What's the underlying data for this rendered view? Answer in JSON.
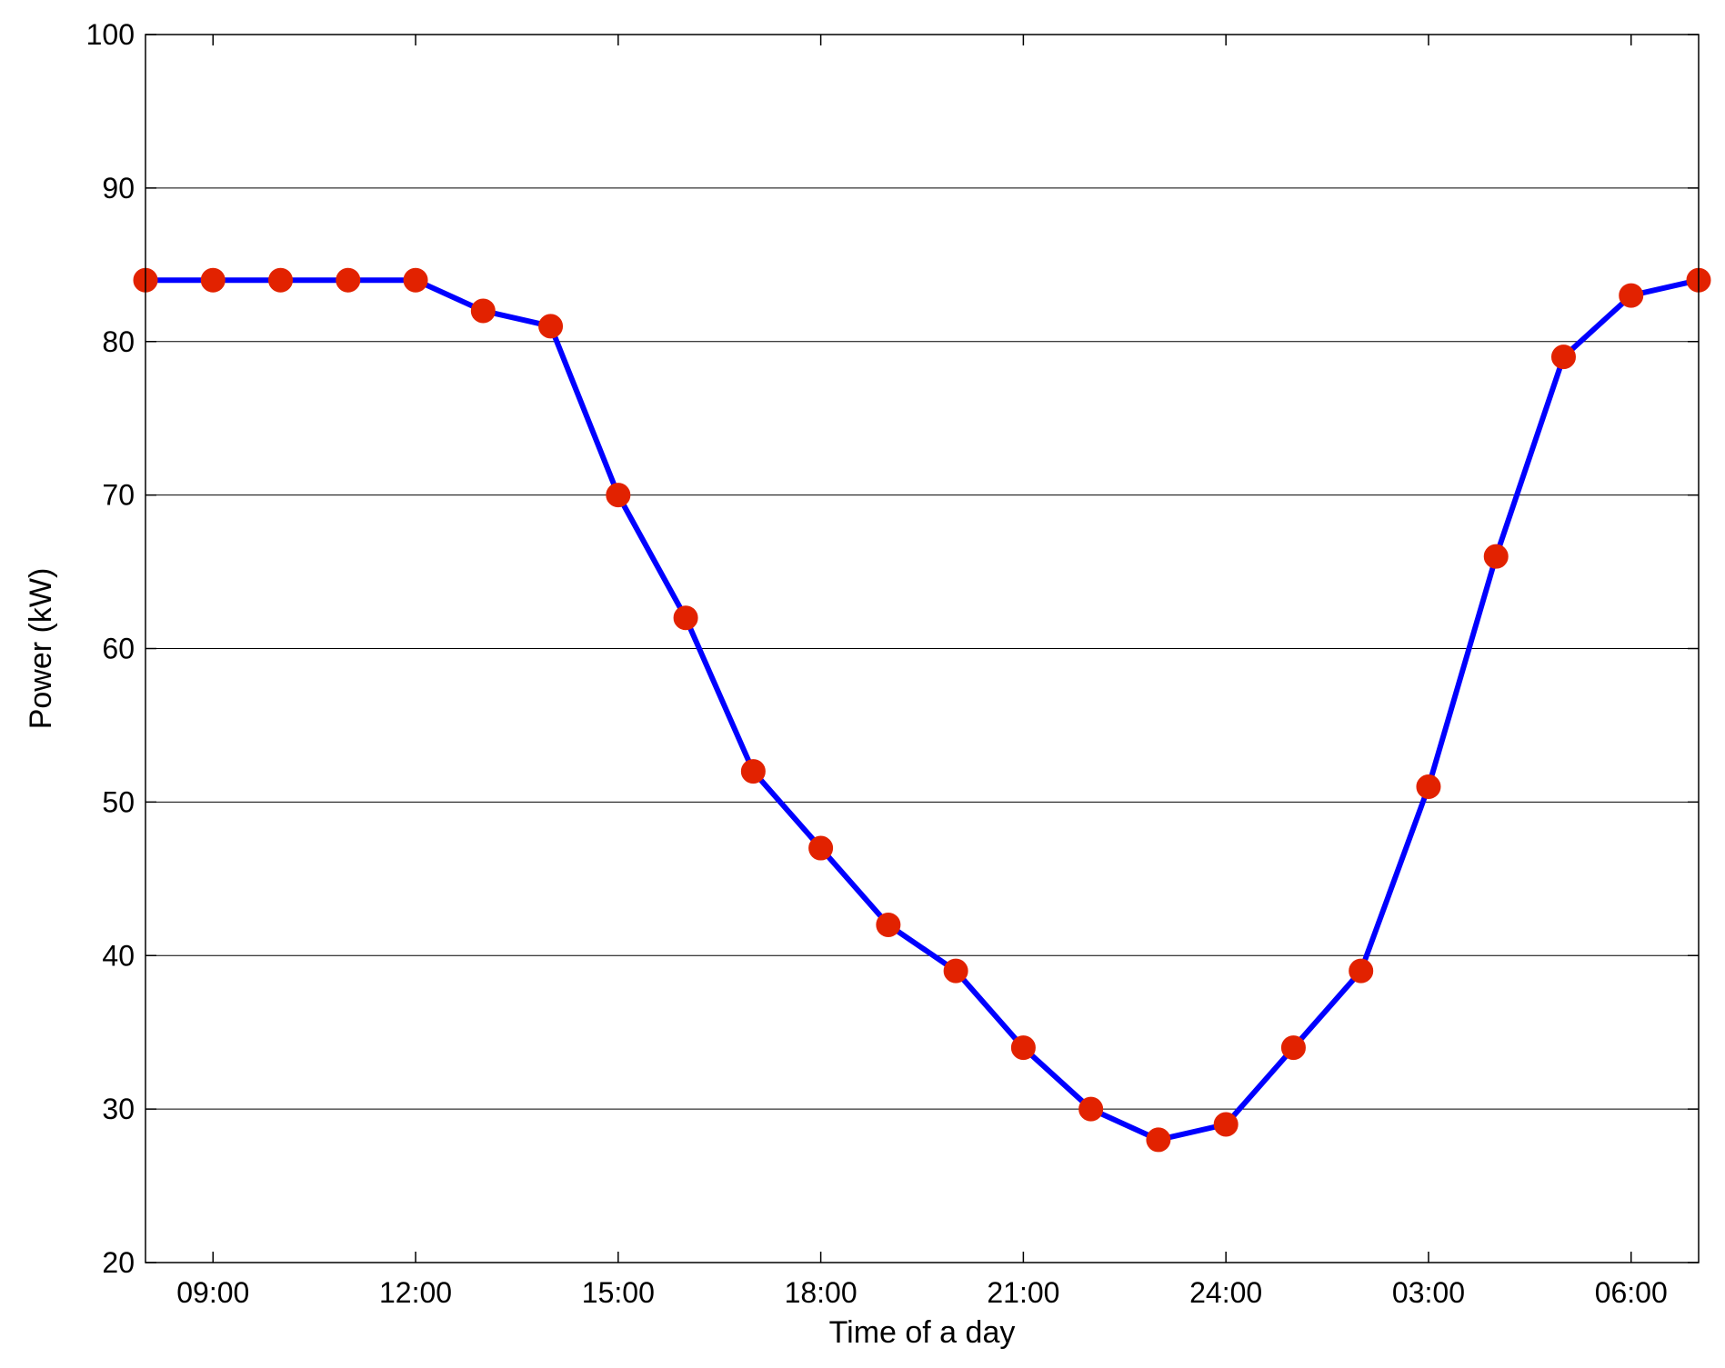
{
  "chart_data": {
    "type": "line",
    "title": "",
    "xlabel": "Time of a day",
    "ylabel": "Power (kW)",
    "x": [
      "08:00",
      "09:00",
      "10:00",
      "11:00",
      "12:00",
      "13:00",
      "14:00",
      "15:00",
      "16:00",
      "17:00",
      "18:00",
      "19:00",
      "20:00",
      "21:00",
      "22:00",
      "23:00",
      "24:00",
      "01:00",
      "02:00",
      "03:00",
      "04:00",
      "05:00",
      "06:00",
      "07:00"
    ],
    "x_tick_labels": [
      "09:00",
      "12:00",
      "15:00",
      "18:00",
      "21:00",
      "24:00",
      "03:00",
      "06:00"
    ],
    "y_tick_labels": [
      "20",
      "30",
      "40",
      "50",
      "60",
      "70",
      "80",
      "90",
      "100"
    ],
    "ylim": [
      20,
      100
    ],
    "yticks": [
      20,
      30,
      40,
      50,
      60,
      70,
      80,
      90,
      100
    ],
    "grid": "horizontal",
    "series": [
      {
        "values": [
          84,
          84,
          84,
          84,
          84,
          82,
          81,
          70,
          62,
          52,
          47,
          42,
          39,
          34,
          30,
          28,
          29,
          34,
          39,
          51,
          66,
          79,
          83,
          84
        ],
        "line_color": "#0000FF",
        "marker_color": "#E22200"
      }
    ]
  }
}
